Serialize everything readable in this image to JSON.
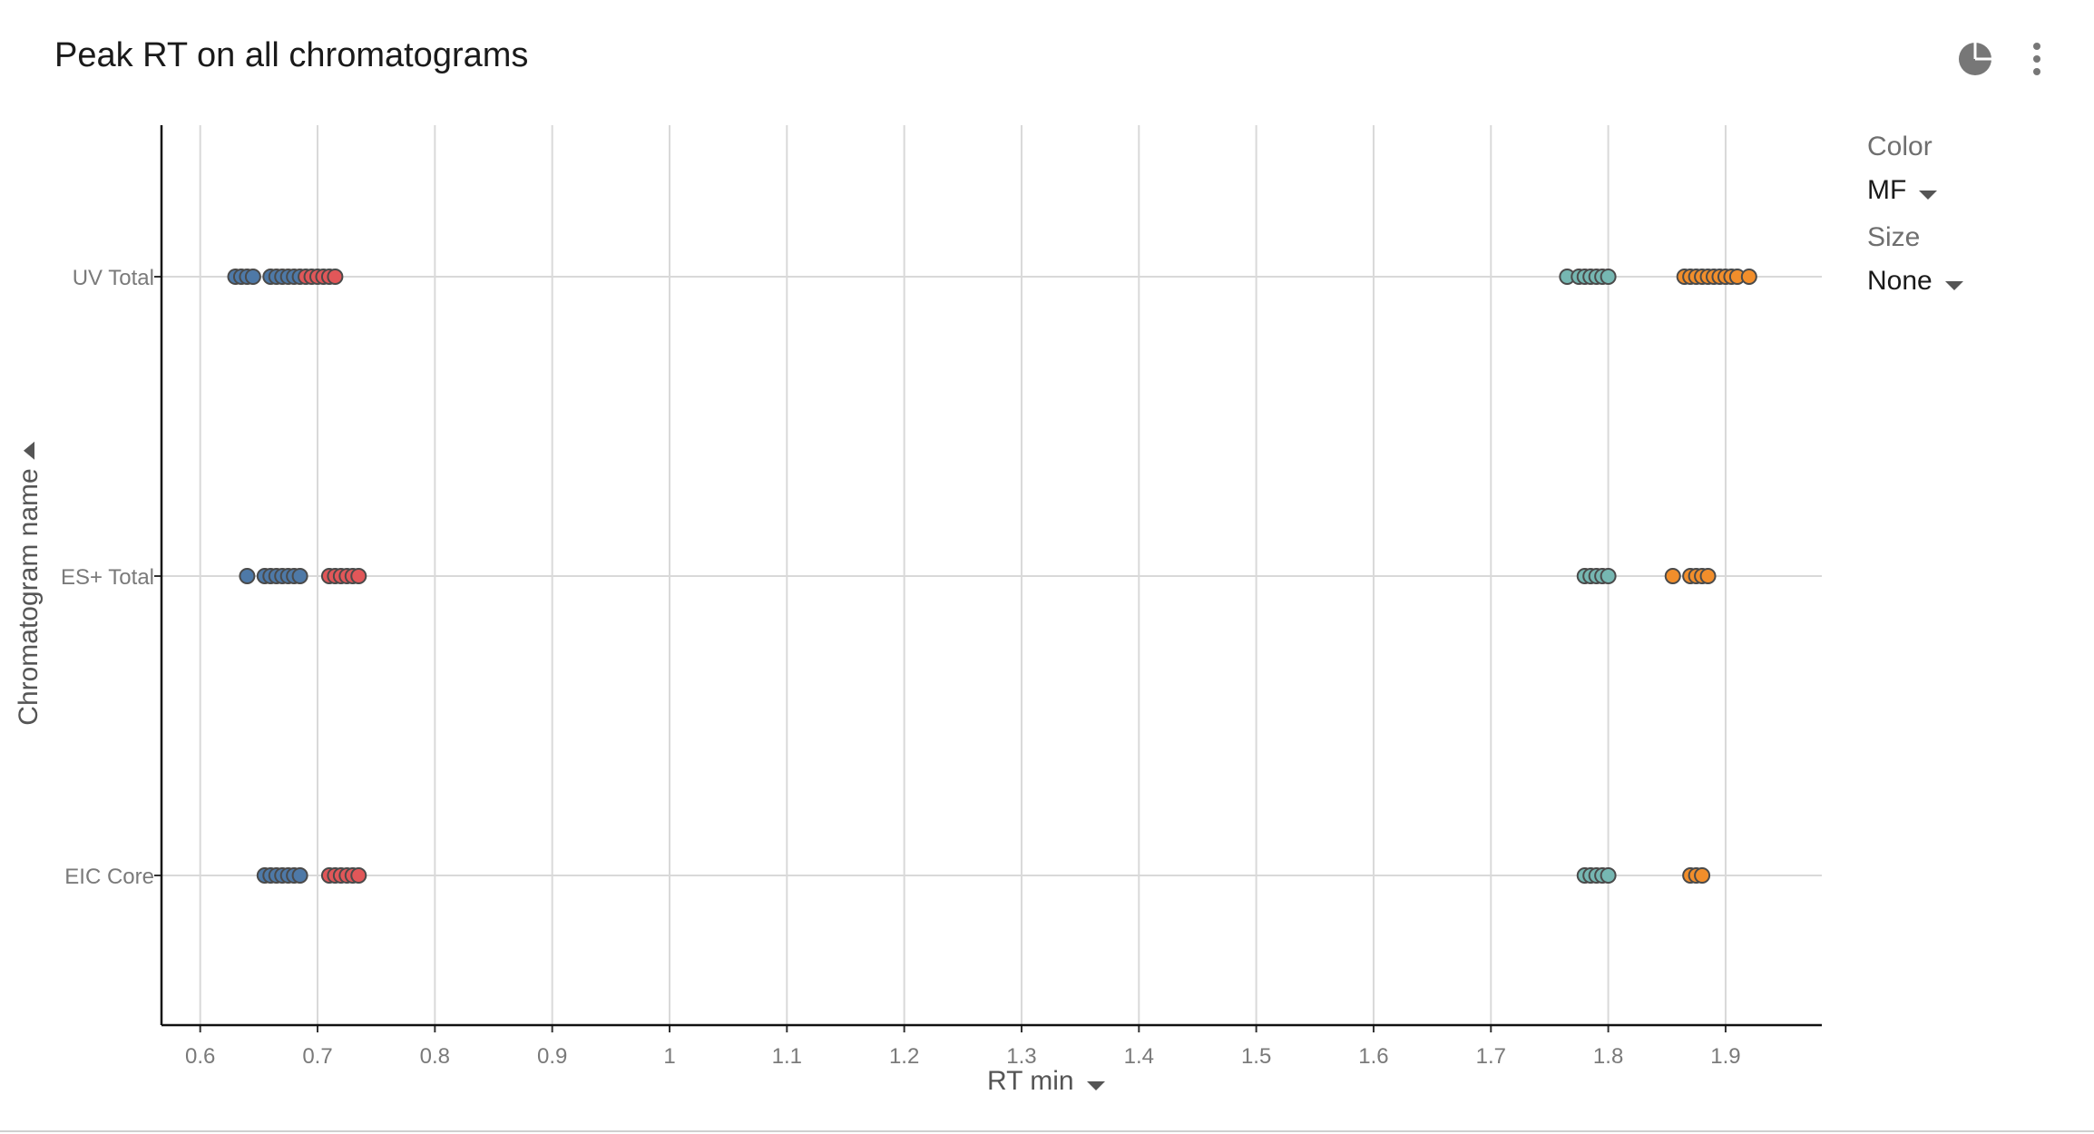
{
  "header": {
    "title": "Peak RT on all chromatograms"
  },
  "icons": {
    "chart_type": "pie-chart-icon",
    "more_menu": "more-vertical-icon"
  },
  "controls": {
    "color_label": "Color",
    "color_value": "MF",
    "size_label": "Size",
    "size_value": "None"
  },
  "chart_data": {
    "type": "scatter",
    "title": "Peak RT on all chromatograms",
    "xlabel": "RT min",
    "ylabel": "Chromatogram name",
    "xlim": [
      0.567,
      1.982
    ],
    "x_ticks": [
      "0.6",
      "0.7",
      "0.8",
      "0.9",
      "1",
      "1.1",
      "1.2",
      "1.3",
      "1.4",
      "1.5",
      "1.6",
      "1.7",
      "1.8",
      "1.9"
    ],
    "categories": [
      "UV Total",
      "ES+ Total",
      "EIC Core"
    ],
    "grid": true,
    "legend": "none",
    "series": [
      {
        "color": "#4e79a7",
        "points": [
          {
            "y": "UV Total",
            "x": [
              0.63,
              0.635,
              0.64,
              0.645,
              0.66,
              0.665,
              0.67,
              0.675,
              0.68,
              0.685
            ]
          },
          {
            "y": "ES+ Total",
            "x": [
              0.64,
              0.655,
              0.66,
              0.665,
              0.67,
              0.675,
              0.68,
              0.685
            ]
          },
          {
            "y": "EIC Core",
            "x": [
              0.655,
              0.66,
              0.665,
              0.67,
              0.675,
              0.68,
              0.685
            ]
          }
        ]
      },
      {
        "color": "#e15759",
        "points": [
          {
            "y": "UV Total",
            "x": [
              0.69,
              0.695,
              0.7,
              0.705,
              0.71,
              0.715
            ]
          },
          {
            "y": "ES+ Total",
            "x": [
              0.71,
              0.715,
              0.72,
              0.725,
              0.73,
              0.735
            ]
          },
          {
            "y": "EIC Core",
            "x": [
              0.71,
              0.715,
              0.72,
              0.725,
              0.73,
              0.735
            ]
          }
        ]
      },
      {
        "color": "#76b7b2",
        "points": [
          {
            "y": "UV Total",
            "x": [
              1.765,
              1.775,
              1.78,
              1.785,
              1.79,
              1.795,
              1.8
            ]
          },
          {
            "y": "ES+ Total",
            "x": [
              1.78,
              1.785,
              1.79,
              1.795,
              1.8
            ]
          },
          {
            "y": "EIC Core",
            "x": [
              1.78,
              1.785,
              1.79,
              1.795,
              1.8
            ]
          }
        ]
      },
      {
        "color": "#f28e2b",
        "points": [
          {
            "y": "UV Total",
            "x": [
              1.865,
              1.87,
              1.875,
              1.88,
              1.885,
              1.89,
              1.895,
              1.9,
              1.905,
              1.91,
              1.92
            ]
          },
          {
            "y": "ES+ Total",
            "x": [
              1.855,
              1.87,
              1.875,
              1.88,
              1.885
            ]
          },
          {
            "y": "EIC Core",
            "x": [
              1.87,
              1.875,
              1.88
            ]
          }
        ]
      }
    ]
  }
}
